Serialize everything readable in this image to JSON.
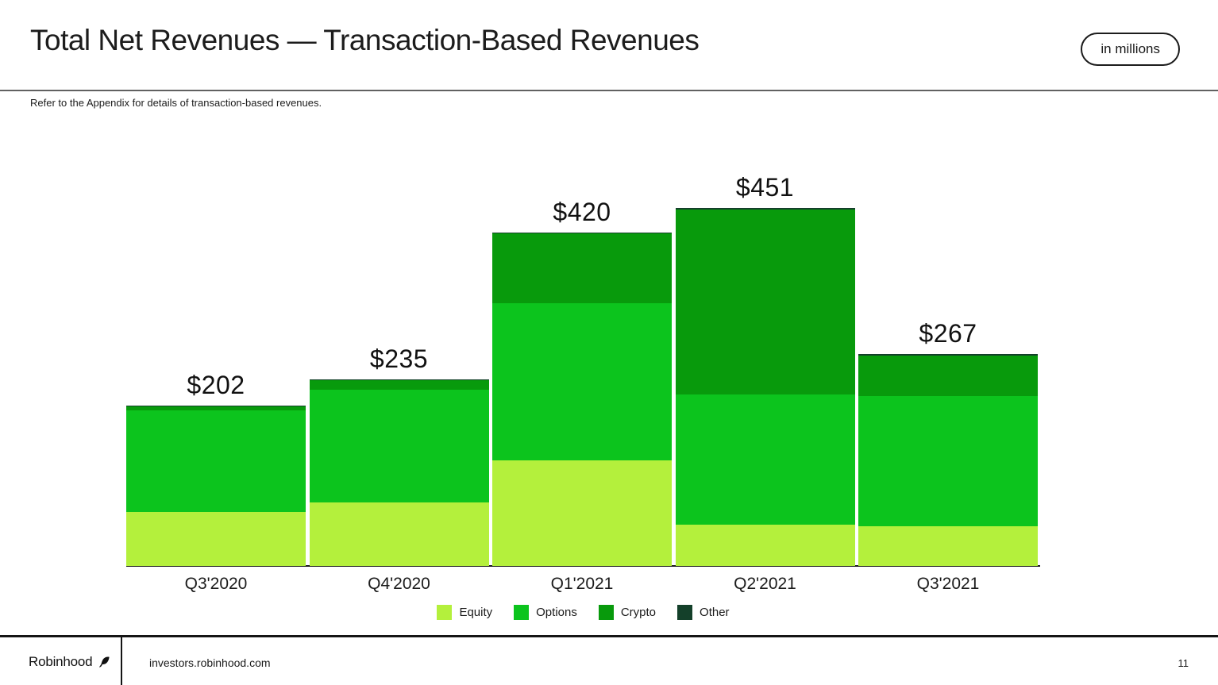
{
  "header": {
    "title": "Total Net Revenues — Transaction-Based Revenues",
    "badge": "in millions"
  },
  "subtitle": "Refer to the Appendix for details of transaction-based revenues.",
  "chart_data": {
    "type": "bar",
    "stacked": true,
    "title": "Total Net Revenues — Transaction-Based Revenues",
    "unit": "USD millions",
    "categories": [
      "Q3'2020",
      "Q4'2020",
      "Q1'2021",
      "Q2'2021",
      "Q3'2021"
    ],
    "series": [
      {
        "name": "Equity",
        "color": "#b4f03c",
        "values": [
          68,
          80,
          133,
          52,
          50
        ]
      },
      {
        "name": "Options",
        "color": "#0cc41d",
        "values": [
          128,
          142,
          198,
          164,
          164
        ]
      },
      {
        "name": "Crypto",
        "color": "#089a0c",
        "values": [
          5,
          12,
          88,
          233,
          51
        ]
      },
      {
        "name": "Other",
        "color": "#14402a",
        "values": [
          1,
          1,
          1,
          2,
          2
        ]
      }
    ],
    "totals": [
      202,
      235,
      420,
      451,
      267
    ],
    "total_labels": [
      "$202",
      "$235",
      "$420",
      "$451",
      "$267"
    ],
    "ylim": [
      0,
      460
    ],
    "grid": false,
    "legend_position": "bottom"
  },
  "footer": {
    "brand": "Robinhood",
    "url": "investors.robinhood.com",
    "page_number": "11"
  }
}
